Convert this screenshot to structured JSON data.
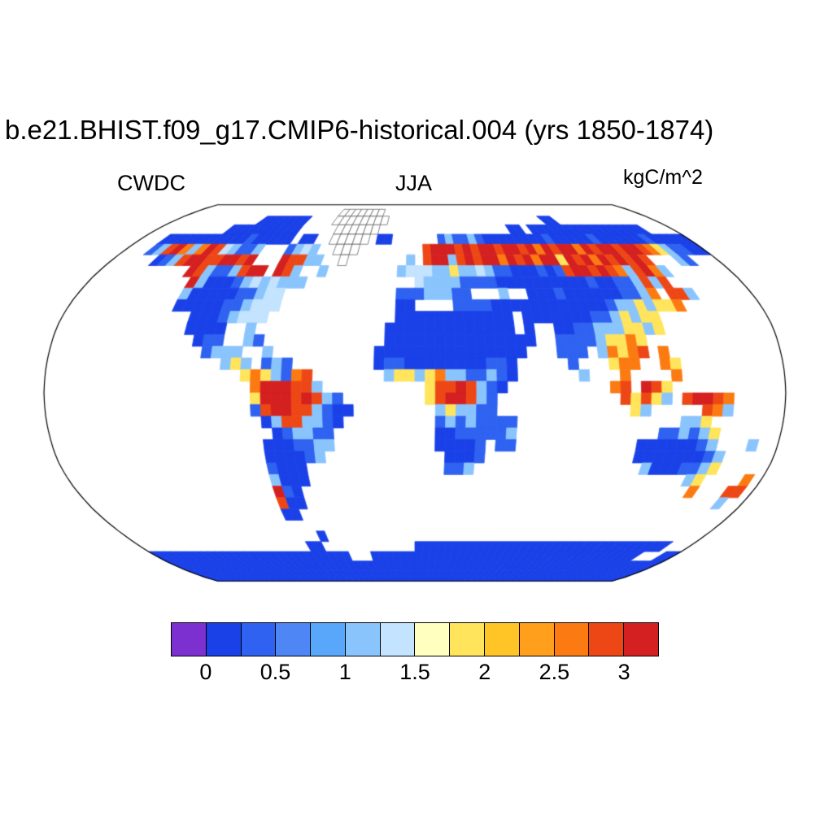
{
  "title": "b.e21.BHIST.f09_g17.CMIP6-historical.004 (yrs 1850-1874)",
  "labels": {
    "variable": "CWDC",
    "season": "JJA",
    "units": "kgC/m^2"
  },
  "colorbar": {
    "tick_labels": [
      "0",
      "0.5",
      "1",
      "1.5",
      "2",
      "2.5",
      "3"
    ],
    "box_count": 14,
    "value_step_per_box": 0.25
  },
  "chart_data": {
    "type": "heatmap",
    "title": "b.e21.BHIST.f09_g17.CMIP6-historical.004 (yrs 1850-1874)",
    "variable": "CWDC",
    "season": "JJA",
    "units": "kgC/m^2",
    "run": "b.e21.BHIST.f09_g17.CMIP6-historical.004",
    "years": "1850-1874",
    "projection": "robinson",
    "levels": [
      0,
      0.25,
      0.5,
      0.75,
      1,
      1.25,
      1.5,
      1.75,
      2,
      2.25,
      2.5,
      2.75,
      3
    ],
    "palette": [
      "#7d30d0",
      "#1a41e8",
      "#2f62f0",
      "#4e86f5",
      "#58a7fa",
      "#8ac4fd",
      "#c3e3fe",
      "#ffffc0",
      "#ffe45c",
      "#ffc527",
      "#ff9f1c",
      "#fb7b12",
      "#ee4716",
      "#d42020"
    ],
    "cell_chars": {
      ".": "ocean / missing",
      "g": "ice sheet (shown white with coast outline)",
      "0": "< 0",
      "1": "0-0.25",
      "2": "0.25-0.5",
      "3": "0.5-0.75",
      "4": "0.75-1.0",
      "5": "1.0-1.25",
      "6": "1.25-1.5",
      "7": "1.5-1.75",
      "8": "1.75-2.0",
      "9": "2.0-2.25",
      "a": "2.25-2.5",
      "b": "2.5-2.75",
      "c": "2.75-3.0",
      "d": "> 3.0"
    },
    "grid": {
      "lon_min": -180,
      "dlon": 5,
      "lat_max": 90,
      "dlat": 5,
      "ncols": 72,
      "nrows": 36,
      "rows": [
        [
          "............",
          "............",
          "............",
          "............",
          "............",
          "............"
        ],
        [
          "............",
          "............",
          "ggggggg.....",
          "............",
          "............",
          "............"
        ],
        [
          "............",
          ".1111111....",
          "gggggggg....",
          "............",
          ".......11...",
          "............"
        ],
        [
          "..........11",
          "11111111....",
          ".gggggg.....",
          "............",
          ".11.11111111",
          "11111111...."
        ],
        [
          "...111111111",
          "11211111.11.",
          ".ggggg.11...",
          "...252252111",
          "111112111112",
          "111111211111"
        ],
        [
          "...25cdb5bdc",
          "65225...2565",
          "..ggg.......",
          ".cdddcdcddcd",
          "dcdbdcddbdcd",
          "dcddcb852211"
        ],
        [
          ".....125cddc",
          "cddcd...dcc5",
          "5..g.......5",
          ".cdd5cdcddbd",
          "cdbdd8dcdbdc",
          "dcdc...52..."
        ],
        [
          "..........dc",
          "5225cdd.dc5.",
          ".5........56",
          "665585565221",
          "11212cddcdcb",
          "5cdb5......."
        ],
        [
          "...........d",
          "511125656555",
          "............",
          "655552222111",
          "111111121122",
          "5c5c........"
        ],
        [
          "...........5",
          "1111122566..",
          "..........22",
          "255522...5..",
          "111211111122",
          "5b.cc5......"
        ],
        [
          "...........1",
          "1111225666..",
          "..........11",
          "....22221111",
          "111111112558",
          "588b........"
        ],
        [
          "............",
          ".11125666...",
          "..........11",
          "1111111111.1",
          "111111225858",
          "8..........."
        ],
        [
          "............",
          ".1111..5....",
          ".........111",
          "1111111111.1",
          "..1122555885",
          "8..........."
        ],
        [
          "............",
          "..122..52...",
          ".........111",
          "111111111111",
          "..2222588b8.",
          "............"
        ],
        [
          "............",
          "...2555..5..",
          "........1111",
          "11111111111.",
          "..222.5b8bc.",
          "b..........."
        ],
        [
          "............",
          ".....585.252",
          "........1221",
          "1111111221..",
          "...2...8bb..",
          "b8.........."
        ],
        [
          "............",
          ".......8b852",
          "bc.......588",
          "58b5522521..",
          "....5...b...",
          ".b.........."
        ],
        [
          "............",
          "........bddd",
          "cc5.........",
          ".8ccdc521...",
          ".......bc.dc",
          "8..........."
        ],
        [
          "............",
          "........8ddd",
          "cdc52.......",
          ".8cddc52....",
          "........c8c8",
          "5.cddcb....."
        ],
        [
          "............",
          "........2cdd",
          "cc5211......",
          "..585522....",
          ".........85.",
          "....cb5....."
        ],
        [
          "............",
          ".........15c",
          "c5521.......",
          "..25252222..",
          "............",
          "..558......."
        ],
        [
          "............",
          "..........12",
          "5522........",
          "..11222225..",
          "............",
          "225258......"
        ],
        [
          "............",
          ".........111",
          "2255........",
          "..11112.22..",
          "..........11",
          "111125...5.."
        ],
        [
          "............",
          ".........111",
          "125.........",
          "...1112.....",
          "..........11",
          "1111125....."
        ],
        [
          "............",
          ".........211",
          "1...........",
          "...225......",
          "...........5",
          "1112258....."
        ],
        [
          "............",
          ".........511",
          "1...........",
          "............",
          "............",
          "....58....b."
        ],
        [
          "............",
          ".........d21",
          "............",
          "............",
          "............",
          ".....b...cc."
        ],
        [
          "............",
          ".........c11",
          "............",
          "............",
          "............",
          ".........5.."
        ],
        [
          "............",
          ".........11.",
          "............",
          "............",
          "............",
          "............"
        ],
        [
          "............",
          "............",
          "............",
          "............",
          "............",
          "............"
        ],
        [
          "............",
          "............",
          "1...........",
          "............",
          "............",
          "............"
        ],
        [
          "............",
          "..........11",
          "............",
          "111111111111",
          "111111111111",
          "111111111..."
        ],
        [
          "111111111111",
          "111111111111",
          "111...111111",
          "111111111111",
          "111111111111",
          "1111111...11"
        ],
        [
          "111111111111",
          "111111111111",
          "111111111111",
          "111111111111",
          "111111111111",
          "111111111111"
        ],
        [
          "111111111111",
          "111111111111",
          "111111111111",
          "111111111111",
          "111111111111",
          "111111111111"
        ],
        [
          "111111111111",
          "111111111111",
          "111111111111",
          "111111111111",
          "111111111111",
          "111111111111"
        ]
      ]
    }
  }
}
